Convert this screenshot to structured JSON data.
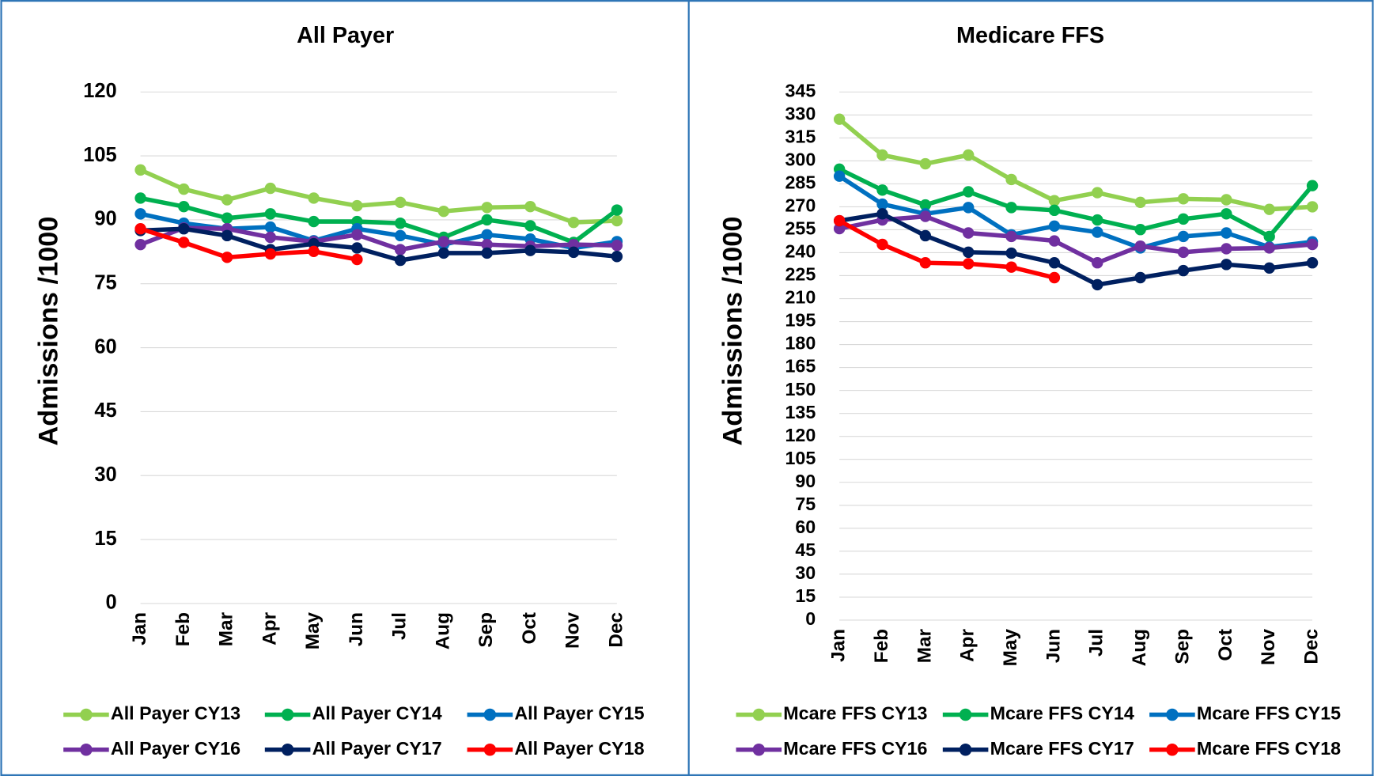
{
  "chart_data": [
    {
      "type": "line",
      "title": "All Payer",
      "y_label": "Admissions /1000",
      "categories": [
        "Jan",
        "Feb",
        "Mar",
        "Apr",
        "May",
        "Jun",
        "Jul",
        "Aug",
        "Sep",
        "Oct",
        "Nov",
        "Dec"
      ],
      "ylim": [
        0,
        120
      ],
      "yticks": [
        0,
        15,
        30,
        45,
        60,
        75,
        90,
        105,
        120
      ],
      "grid": true,
      "series": [
        {
          "name": "All Payer CY13",
          "color": "#92d050",
          "values": [
            101.7,
            97.2,
            94.7,
            97.4,
            95.1,
            93.3,
            94.1,
            92.0,
            92.9,
            93.1,
            89.4,
            89.8
          ]
        },
        {
          "name": "All Payer CY14",
          "color": "#00b050",
          "values": [
            95.1,
            93.1,
            90.4,
            91.4,
            89.6,
            89.6,
            89.2,
            85.9,
            90.0,
            88.6,
            84.7,
            92.3
          ]
        },
        {
          "name": "All Payer CY15",
          "color": "#0070c0",
          "values": [
            91.4,
            89.2,
            87.9,
            88.3,
            85.1,
            87.9,
            86.3,
            84.2,
            86.5,
            85.5,
            83.4,
            84.9
          ]
        },
        {
          "name": "All Payer CY16",
          "color": "#7030a0",
          "values": [
            84.2,
            88.1,
            87.9,
            85.9,
            84.9,
            86.5,
            83.0,
            84.9,
            84.2,
            83.8,
            84.2,
            84.0
          ]
        },
        {
          "name": "All Payer CY17",
          "color": "#002060",
          "values": [
            87.5,
            87.9,
            86.3,
            83.0,
            84.4,
            83.4,
            80.5,
            82.2,
            82.2,
            82.8,
            82.4,
            81.4
          ]
        },
        {
          "name": "All Payer CY18",
          "color": "#ff0000",
          "values": [
            87.9,
            84.7,
            81.2,
            82.0,
            82.6,
            80.7,
            null,
            null,
            null,
            null,
            null,
            null
          ]
        }
      ]
    },
    {
      "type": "line",
      "title": "Medicare FFS",
      "y_label": "Admissions /1000",
      "categories": [
        "Jan",
        "Feb",
        "Mar",
        "Apr",
        "May",
        "Jun",
        "Jul",
        "Aug",
        "Sep",
        "Oct",
        "Nov",
        "Dec"
      ],
      "ylim": [
        0,
        345
      ],
      "yticks": [
        0,
        15,
        30,
        45,
        60,
        75,
        90,
        105,
        120,
        135,
        150,
        165,
        180,
        195,
        210,
        225,
        240,
        255,
        270,
        285,
        300,
        315,
        330,
        345
      ],
      "grid": true,
      "series": [
        {
          "name": "Mcare FFS CY13",
          "color": "#92d050",
          "values": [
            327.2,
            303.8,
            298.1,
            303.8,
            287.8,
            274.0,
            279.2,
            272.9,
            275.2,
            274.6,
            268.3,
            270.0
          ]
        },
        {
          "name": "Mcare FFS CY14",
          "color": "#00b050",
          "values": [
            294.6,
            280.9,
            271.2,
            279.8,
            269.5,
            267.7,
            261.4,
            255.1,
            262.0,
            265.4,
            250.6,
            283.8
          ]
        },
        {
          "name": "Mcare FFS CY15",
          "color": "#0070c0",
          "values": [
            290.0,
            271.7,
            265.4,
            269.5,
            251.7,
            257.4,
            253.4,
            243.1,
            250.6,
            252.9,
            243.7,
            247.1
          ]
        },
        {
          "name": "Mcare FFS CY16",
          "color": "#7030a0",
          "values": [
            255.7,
            261.4,
            263.7,
            252.9,
            250.6,
            247.7,
            233.4,
            244.3,
            240.3,
            242.6,
            243.1,
            245.4
          ]
        },
        {
          "name": "Mcare FFS CY17",
          "color": "#002060",
          "values": [
            260.9,
            265.4,
            251.1,
            240.3,
            239.7,
            233.4,
            219.1,
            223.7,
            228.3,
            232.3,
            230.0,
            233.4
          ]
        },
        {
          "name": "Mcare FFS CY18",
          "color": "#ff0000",
          "values": [
            260.9,
            245.4,
            233.4,
            232.8,
            230.6,
            223.7,
            null,
            null,
            null,
            null,
            null,
            null
          ]
        }
      ]
    }
  ]
}
